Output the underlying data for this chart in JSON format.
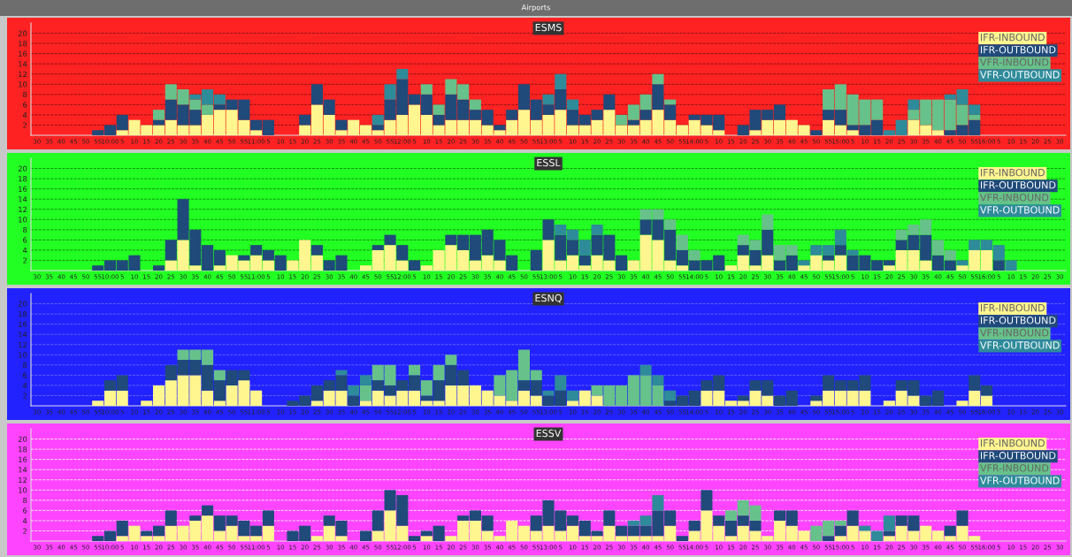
{
  "chart_data": [
    {
      "type": "bar",
      "stacked": true,
      "title": "ESMS",
      "annotations": [
        "Airports"
      ],
      "grid": "y",
      "legend": "top right",
      "ylim": [
        0,
        22
      ],
      "yticks": [
        2,
        4,
        6,
        8,
        10,
        12,
        14,
        16,
        18,
        20
      ],
      "categories": [
        "30",
        "35",
        "40",
        "45",
        "50",
        "55",
        "10:00",
        "5",
        "10",
        "15",
        "20",
        "25",
        "30",
        "35",
        "40",
        "45",
        "50",
        "55",
        "11:00",
        "5",
        "10",
        "15",
        "20",
        "25",
        "30",
        "35",
        "40",
        "45",
        "50",
        "55",
        "12:00",
        "5",
        "10",
        "15",
        "20",
        "25",
        "30",
        "35",
        "40",
        "45",
        "50",
        "55",
        "13:00",
        "5",
        "10",
        "15",
        "20",
        "25",
        "30",
        "35",
        "40",
        "45",
        "50",
        "55",
        "14:00",
        "5",
        "10",
        "15",
        "20",
        "25",
        "30",
        "35",
        "40",
        "45",
        "50",
        "55",
        "15:00",
        "5",
        "10",
        "15",
        "20",
        "25",
        "30",
        "35",
        "40",
        "45",
        "50",
        "55",
        "16:00",
        "5",
        "10",
        "15",
        "20",
        "25",
        "30"
      ],
      "series": [
        {
          "name": "IFR-INBOUND",
          "color": "#fff68f",
          "values": [
            0,
            0,
            0,
            0,
            0,
            0,
            0,
            1,
            3,
            2,
            2,
            3,
            2,
            2,
            4,
            5,
            5,
            3,
            1,
            0,
            0,
            0,
            2,
            6,
            4,
            1,
            3,
            2,
            1,
            3,
            4,
            6,
            4,
            2,
            3,
            3,
            3,
            2,
            1,
            3,
            5,
            3,
            4,
            5,
            2,
            2,
            3,
            5,
            2,
            2,
            3,
            5,
            3,
            2,
            3,
            2,
            1,
            0,
            0,
            1,
            3,
            3,
            3,
            2,
            0,
            3,
            2,
            1,
            0,
            0,
            0,
            0,
            3,
            2,
            1,
            0,
            0,
            0,
            0,
            0,
            0,
            0,
            0,
            0,
            0
          ]
        },
        {
          "name": "IFR-OUTBOUND",
          "color": "#1f4a7a",
          "values": [
            0,
            0,
            0,
            0,
            0,
            1,
            2,
            3,
            0,
            0,
            1,
            4,
            4,
            3,
            0,
            1,
            2,
            4,
            2,
            3,
            0,
            0,
            2,
            4,
            3,
            2,
            0,
            0,
            1,
            4,
            7,
            2,
            4,
            2,
            5,
            4,
            2,
            3,
            1,
            2,
            5,
            4,
            2,
            4,
            3,
            2,
            2,
            3,
            0,
            1,
            2,
            5,
            3,
            0,
            1,
            2,
            3,
            0,
            2,
            4,
            2,
            3,
            0,
            0,
            1,
            2,
            3,
            1,
            2,
            3,
            0,
            0,
            0,
            0,
            0,
            1,
            2,
            3,
            0,
            0,
            0,
            0,
            0,
            0,
            0
          ]
        },
        {
          "name": "VFR-INBOUND",
          "color": "#66c28a",
          "values": [
            0,
            0,
            0,
            0,
            0,
            0,
            0,
            0,
            0,
            0,
            2,
            3,
            3,
            2,
            2,
            0,
            0,
            0,
            0,
            0,
            0,
            0,
            0,
            0,
            0,
            0,
            0,
            0,
            0,
            0,
            0,
            0,
            2,
            2,
            3,
            3,
            2,
            0,
            0,
            0,
            0,
            0,
            0,
            0,
            0,
            0,
            0,
            0,
            2,
            3,
            3,
            2,
            1,
            0,
            0,
            0,
            0,
            0,
            0,
            0,
            0,
            0,
            0,
            0,
            0,
            4,
            5,
            6,
            5,
            4,
            0,
            0,
            2,
            5,
            6,
            6,
            4,
            1,
            0,
            0,
            0,
            0,
            0,
            0,
            0
          ]
        },
        {
          "name": "VFR-OUTBOUND",
          "color": "#2e8b9a",
          "values": [
            0,
            0,
            0,
            0,
            0,
            0,
            0,
            0,
            0,
            0,
            0,
            0,
            0,
            1,
            3,
            2,
            0,
            0,
            0,
            0,
            0,
            0,
            0,
            0,
            0,
            0,
            0,
            0,
            2,
            3,
            2,
            0,
            0,
            0,
            0,
            0,
            0,
            0,
            0,
            0,
            0,
            0,
            2,
            3,
            2,
            0,
            0,
            0,
            0,
            0,
            0,
            0,
            0,
            0,
            0,
            0,
            0,
            0,
            0,
            0,
            0,
            0,
            0,
            0,
            0,
            0,
            0,
            0,
            0,
            0,
            1,
            3,
            2,
            0,
            0,
            1,
            3,
            2,
            0,
            0,
            0,
            0,
            0,
            0,
            0
          ]
        }
      ]
    },
    {
      "type": "bar",
      "stacked": true,
      "title": "ESSL",
      "grid": "y",
      "legend": "top right",
      "ylim": [
        0,
        22
      ],
      "yticks": [
        2,
        4,
        6,
        8,
        10,
        12,
        14,
        16,
        18,
        20
      ],
      "categories": [
        "30",
        "35",
        "40",
        "45",
        "50",
        "55",
        "10:00",
        "5",
        "10",
        "15",
        "20",
        "25",
        "30",
        "35",
        "40",
        "45",
        "50",
        "55",
        "11:00",
        "5",
        "10",
        "15",
        "20",
        "25",
        "30",
        "35",
        "40",
        "45",
        "50",
        "55",
        "12:00",
        "5",
        "10",
        "15",
        "20",
        "25",
        "30",
        "35",
        "40",
        "45",
        "50",
        "55",
        "13:00",
        "5",
        "10",
        "15",
        "20",
        "25",
        "30",
        "35",
        "40",
        "45",
        "50",
        "55",
        "14:00",
        "5",
        "10",
        "15",
        "20",
        "25",
        "30",
        "35",
        "40",
        "45",
        "50",
        "55",
        "15:00",
        "5",
        "10",
        "15",
        "20",
        "25",
        "30",
        "35",
        "40",
        "45",
        "50",
        "55",
        "16:00",
        "5",
        "10",
        "15",
        "20",
        "25",
        "30"
      ],
      "series": [
        {
          "name": "IFR-INBOUND",
          "color": "#fff68f",
          "values": [
            0,
            0,
            0,
            0,
            0,
            0,
            0,
            0,
            0,
            0,
            0,
            2,
            6,
            1,
            0,
            1,
            3,
            2,
            3,
            2,
            0,
            2,
            6,
            3,
            0,
            0,
            0,
            1,
            4,
            5,
            2,
            0,
            1,
            4,
            5,
            4,
            2,
            3,
            2,
            0,
            0,
            0,
            6,
            2,
            3,
            1,
            3,
            2,
            0,
            2,
            7,
            6,
            2,
            1,
            0,
            0,
            0,
            1,
            3,
            1,
            3,
            0,
            0,
            1,
            3,
            2,
            3,
            0,
            0,
            0,
            1,
            4,
            4,
            2,
            0,
            0,
            1,
            4,
            4,
            0,
            0,
            0,
            0,
            0,
            0
          ]
        },
        {
          "name": "IFR-OUTBOUND",
          "color": "#1f4a7a",
          "values": [
            0,
            0,
            0,
            0,
            0,
            1,
            2,
            2,
            3,
            0,
            1,
            4,
            8,
            7,
            5,
            3,
            0,
            1,
            2,
            2,
            3,
            0,
            0,
            2,
            2,
            3,
            0,
            0,
            1,
            2,
            3,
            2,
            0,
            0,
            2,
            3,
            5,
            5,
            4,
            3,
            0,
            4,
            4,
            5,
            3,
            2,
            4,
            5,
            3,
            0,
            3,
            4,
            6,
            3,
            2,
            2,
            3,
            0,
            2,
            3,
            5,
            2,
            3,
            0,
            0,
            1,
            2,
            3,
            3,
            2,
            1,
            2,
            3,
            5,
            3,
            2,
            0,
            0,
            0,
            2,
            0,
            0,
            0,
            0,
            0
          ]
        },
        {
          "name": "VFR-INBOUND",
          "color": "#66c28a",
          "values": [
            0,
            0,
            0,
            0,
            0,
            0,
            0,
            0,
            0,
            0,
            0,
            0,
            0,
            0,
            0,
            0,
            0,
            0,
            0,
            0,
            0,
            0,
            0,
            0,
            0,
            0,
            0,
            0,
            0,
            0,
            0,
            0,
            0,
            0,
            0,
            0,
            0,
            0,
            0,
            0,
            0,
            0,
            0,
            0,
            0,
            0,
            0,
            0,
            0,
            0,
            2,
            2,
            2,
            3,
            2,
            0,
            0,
            0,
            2,
            2,
            3,
            3,
            2,
            0,
            0,
            0,
            0,
            0,
            0,
            0,
            0,
            2,
            2,
            3,
            3,
            2,
            0,
            0,
            0,
            0,
            0,
            0,
            0,
            0,
            0
          ]
        },
        {
          "name": "VFR-OUTBOUND",
          "color": "#2e8b9a",
          "values": [
            0,
            0,
            0,
            0,
            0,
            0,
            0,
            0,
            0,
            0,
            0,
            0,
            0,
            0,
            0,
            0,
            0,
            0,
            0,
            0,
            0,
            0,
            0,
            0,
            0,
            0,
            0,
            0,
            0,
            0,
            0,
            0,
            0,
            0,
            0,
            0,
            0,
            0,
            0,
            0,
            0,
            0,
            0,
            2,
            2,
            3,
            2,
            0,
            0,
            0,
            0,
            0,
            0,
            0,
            0,
            0,
            0,
            0,
            0,
            0,
            0,
            0,
            0,
            1,
            2,
            2,
            3,
            1,
            0,
            0,
            0,
            0,
            0,
            0,
            0,
            0,
            1,
            2,
            2,
            3,
            2,
            0,
            0,
            0,
            0
          ]
        }
      ]
    },
    {
      "type": "bar",
      "stacked": true,
      "title": "ESNQ",
      "grid": "y",
      "legend": "top right",
      "ylim": [
        0,
        22
      ],
      "yticks": [
        2,
        4,
        6,
        8,
        10,
        12,
        14,
        16,
        18,
        20
      ],
      "categories": [
        "30",
        "35",
        "40",
        "45",
        "50",
        "55",
        "10:00",
        "5",
        "10",
        "15",
        "20",
        "25",
        "30",
        "35",
        "40",
        "45",
        "50",
        "55",
        "11:00",
        "5",
        "10",
        "15",
        "20",
        "25",
        "30",
        "35",
        "40",
        "45",
        "50",
        "55",
        "12:00",
        "5",
        "10",
        "15",
        "20",
        "25",
        "30",
        "35",
        "40",
        "45",
        "50",
        "55",
        "13:00",
        "5",
        "10",
        "15",
        "20",
        "25",
        "30",
        "35",
        "40",
        "45",
        "50",
        "55",
        "14:00",
        "5",
        "10",
        "15",
        "20",
        "25",
        "30",
        "35",
        "40",
        "45",
        "50",
        "55",
        "15:00",
        "5",
        "10",
        "15",
        "20",
        "25",
        "30",
        "35",
        "40",
        "45",
        "50",
        "55",
        "16:00",
        "5",
        "10",
        "15",
        "20",
        "25",
        "30"
      ],
      "series": [
        {
          "name": "IFR-INBOUND",
          "color": "#fff68f",
          "values": [
            0,
            0,
            0,
            0,
            0,
            1,
            3,
            3,
            0,
            1,
            4,
            5,
            6,
            6,
            3,
            1,
            4,
            5,
            3,
            0,
            0,
            0,
            0,
            1,
            3,
            3,
            0,
            1,
            3,
            2,
            3,
            3,
            1,
            1,
            4,
            4,
            4,
            3,
            2,
            1,
            3,
            2,
            0,
            0,
            1,
            3,
            2,
            0,
            0,
            0,
            0,
            0,
            0,
            0,
            0,
            3,
            3,
            1,
            1,
            3,
            2,
            0,
            0,
            0,
            1,
            3,
            3,
            3,
            3,
            0,
            1,
            3,
            2,
            0,
            0,
            0,
            1,
            3,
            2,
            0,
            0,
            0,
            0,
            0,
            0
          ]
        },
        {
          "name": "IFR-OUTBOUND",
          "color": "#1f4a7a",
          "values": [
            0,
            0,
            0,
            0,
            0,
            0,
            2,
            3,
            0,
            0,
            0,
            3,
            3,
            3,
            5,
            4,
            3,
            2,
            0,
            0,
            0,
            1,
            2,
            3,
            2,
            3,
            2,
            0,
            2,
            2,
            2,
            3,
            1,
            4,
            4,
            3,
            0,
            0,
            0,
            0,
            2,
            3,
            2,
            3,
            0,
            0,
            0,
            0,
            0,
            0,
            0,
            0,
            1,
            2,
            3,
            2,
            3,
            0,
            1,
            2,
            3,
            2,
            3,
            0,
            1,
            3,
            2,
            2,
            3,
            0,
            0,
            2,
            3,
            2,
            3,
            0,
            0,
            3,
            2,
            0,
            0,
            0,
            0,
            0,
            0
          ]
        },
        {
          "name": "VFR-INBOUND",
          "color": "#66c28a",
          "values": [
            0,
            0,
            0,
            0,
            0,
            0,
            0,
            0,
            0,
            0,
            0,
            0,
            2,
            2,
            3,
            2,
            0,
            0,
            0,
            0,
            0,
            0,
            0,
            0,
            0,
            0,
            0,
            3,
            3,
            4,
            0,
            2,
            3,
            3,
            2,
            0,
            0,
            0,
            4,
            6,
            6,
            2,
            0,
            0,
            0,
            0,
            2,
            4,
            4,
            6,
            6,
            4,
            0,
            0,
            0,
            0,
            0,
            0,
            0,
            0,
            0,
            0,
            0,
            0,
            0,
            0,
            0,
            0,
            0,
            0,
            0,
            0,
            0,
            0,
            0,
            0,
            0,
            0,
            0,
            0,
            0,
            0,
            0,
            0,
            0
          ]
        },
        {
          "name": "VFR-OUTBOUND",
          "color": "#2e8b9a",
          "values": [
            0,
            0,
            0,
            0,
            0,
            0,
            0,
            0,
            0,
            0,
            0,
            0,
            0,
            0,
            0,
            0,
            0,
            0,
            0,
            0,
            0,
            0,
            0,
            0,
            0,
            1,
            2,
            2,
            0,
            0,
            0,
            0,
            0,
            0,
            0,
            0,
            0,
            0,
            0,
            0,
            0,
            0,
            1,
            3,
            2,
            0,
            0,
            0,
            0,
            0,
            2,
            2,
            2,
            0,
            0,
            0,
            0,
            0,
            0,
            0,
            0,
            0,
            0,
            0,
            0,
            0,
            0,
            0,
            0,
            0,
            0,
            0,
            0,
            0,
            0,
            0,
            0,
            0,
            0,
            0,
            0,
            0,
            0,
            0,
            0
          ]
        }
      ]
    },
    {
      "type": "bar",
      "stacked": true,
      "title": "ESSV",
      "grid": "y",
      "legend": "top right",
      "ylim": [
        0,
        22
      ],
      "yticks": [
        2,
        4,
        6,
        8,
        10,
        12,
        14,
        16,
        18,
        20
      ],
      "categories": [
        "30",
        "35",
        "40",
        "45",
        "50",
        "55",
        "10:00",
        "5",
        "10",
        "15",
        "20",
        "25",
        "30",
        "35",
        "40",
        "45",
        "50",
        "55",
        "11:00",
        "5",
        "10",
        "15",
        "20",
        "25",
        "30",
        "35",
        "40",
        "45",
        "50",
        "55",
        "12:00",
        "5",
        "10",
        "15",
        "20",
        "25",
        "30",
        "35",
        "40",
        "45",
        "50",
        "55",
        "13:00",
        "5",
        "10",
        "15",
        "20",
        "25",
        "30",
        "35",
        "40",
        "45",
        "50",
        "55",
        "14:00",
        "5",
        "10",
        "15",
        "20",
        "25",
        "30",
        "35",
        "40",
        "45",
        "50",
        "55",
        "15:00",
        "5",
        "10",
        "15",
        "20",
        "25",
        "30",
        "35",
        "40",
        "45",
        "50",
        "55",
        "16:00",
        "5",
        "10",
        "15",
        "20",
        "25",
        "30"
      ],
      "series": [
        {
          "name": "IFR-INBOUND",
          "color": "#fff68f",
          "values": [
            0,
            0,
            0,
            0,
            0,
            0,
            0,
            1,
            3,
            1,
            1,
            3,
            3,
            4,
            5,
            2,
            3,
            1,
            1,
            3,
            0,
            0,
            0,
            1,
            3,
            1,
            0,
            0,
            2,
            6,
            3,
            0,
            1,
            0,
            1,
            4,
            4,
            2,
            1,
            4,
            3,
            2,
            3,
            2,
            3,
            1,
            1,
            3,
            1,
            1,
            1,
            1,
            3,
            0,
            2,
            6,
            3,
            1,
            3,
            2,
            1,
            4,
            3,
            2,
            0,
            0,
            1,
            3,
            2,
            0,
            1,
            3,
            2,
            3,
            2,
            1,
            3,
            1,
            0,
            0,
            0,
            0,
            0,
            0,
            0
          ]
        },
        {
          "name": "IFR-OUTBOUND",
          "color": "#1f4a7a",
          "values": [
            0,
            0,
            0,
            0,
            0,
            1,
            2,
            3,
            0,
            1,
            2,
            3,
            0,
            1,
            2,
            3,
            2,
            3,
            2,
            3,
            0,
            2,
            3,
            0,
            2,
            3,
            0,
            2,
            4,
            4,
            6,
            1,
            1,
            3,
            0,
            1,
            2,
            3,
            0,
            0,
            0,
            3,
            5,
            4,
            2,
            3,
            1,
            3,
            2,
            2,
            2,
            5,
            3,
            1,
            2,
            4,
            2,
            3,
            2,
            2,
            0,
            2,
            3,
            0,
            0,
            1,
            2,
            3,
            0,
            0,
            1,
            2,
            3,
            0,
            0,
            2,
            3,
            0,
            0,
            0,
            0,
            0,
            0,
            0,
            0
          ]
        },
        {
          "name": "VFR-INBOUND",
          "color": "#66c28a",
          "values": [
            0,
            0,
            0,
            0,
            0,
            0,
            0,
            0,
            0,
            0,
            0,
            0,
            0,
            0,
            0,
            0,
            0,
            0,
            0,
            0,
            0,
            0,
            0,
            0,
            0,
            0,
            0,
            0,
            0,
            0,
            0,
            0,
            0,
            0,
            0,
            0,
            0,
            0,
            0,
            0,
            0,
            0,
            0,
            0,
            0,
            0,
            0,
            0,
            0,
            0,
            0,
            0,
            0,
            0,
            0,
            0,
            0,
            2,
            3,
            3,
            0,
            0,
            0,
            0,
            3,
            3,
            1,
            0,
            0,
            0,
            0,
            0,
            0,
            0,
            0,
            0,
            0,
            0,
            0,
            0,
            0,
            0,
            0,
            0,
            0
          ]
        },
        {
          "name": "VFR-OUTBOUND",
          "color": "#2e8b9a",
          "values": [
            0,
            0,
            0,
            0,
            0,
            0,
            0,
            0,
            0,
            0,
            0,
            0,
            0,
            0,
            0,
            0,
            0,
            0,
            0,
            0,
            0,
            0,
            0,
            0,
            0,
            0,
            0,
            0,
            0,
            0,
            0,
            0,
            0,
            0,
            0,
            0,
            0,
            0,
            0,
            0,
            0,
            0,
            0,
            0,
            0,
            0,
            0,
            0,
            0,
            1,
            2,
            3,
            0,
            0,
            0,
            0,
            0,
            0,
            0,
            0,
            0,
            0,
            0,
            0,
            0,
            0,
            0,
            0,
            1,
            2,
            3,
            0,
            0,
            0,
            0,
            0,
            0,
            0,
            0,
            0,
            0,
            0,
            0,
            0,
            0
          ]
        }
      ]
    }
  ]
}
